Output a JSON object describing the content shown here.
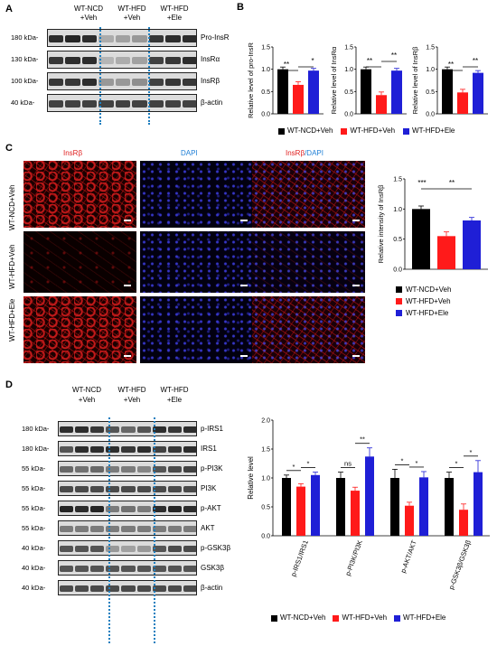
{
  "panels": {
    "A": "A",
    "B": "B",
    "C": "C",
    "D": "D"
  },
  "panelA": {
    "groups": [
      "WT-NCD\n+Veh",
      "WT-HFD\n+Veh",
      "WT-HFD\n+Ele"
    ],
    "group1": "WT-NCD",
    "group1b": "+Veh",
    "group2": "WT-HFD",
    "group2b": "+Veh",
    "group3": "WT-HFD",
    "group3b": "+Ele",
    "rows": [
      {
        "kda": "180 kDa-",
        "protein": "Pro-InsR"
      },
      {
        "kda": "130 kDa-",
        "protein": "InsRα"
      },
      {
        "kda": "100 kDa-",
        "protein": "InsRβ"
      },
      {
        "kda": "40 kDa-",
        "protein": "β-actin"
      }
    ]
  },
  "panelB": {
    "sig1": "**",
    "sig2": "*",
    "sig3": "**",
    "sig4": "**",
    "sig5": "**",
    "sig6": "**",
    "legend": [
      "WT-NCD+Veh",
      "WT-HFD+Veh",
      "WT-HFD+Ele"
    ]
  },
  "panelC": {
    "col1": "InsRβ",
    "col2": "DAPI",
    "col3a": "InsRβ",
    "col3b": "/DAPI",
    "row1": "WT-NCD+Veh",
    "row2": "WT-HFD+Veh",
    "row3": "WT-HFD+Ele",
    "sig1": "***",
    "sig2": "**",
    "legend": [
      "WT-NCD+Veh",
      "WT-HFD+Veh",
      "WT-HFD+Ele"
    ]
  },
  "panelD": {
    "group1": "WT-NCD",
    "group1b": "+Veh",
    "group2": "WT-HFD",
    "group2b": "+Veh",
    "group3": "WT-HFD",
    "group3b": "+Ele",
    "rows": [
      {
        "kda": "180 kDa-",
        "protein": "p-IRS1"
      },
      {
        "kda": "180 kDa-",
        "protein": "IRS1"
      },
      {
        "kda": "55 kDa-",
        "protein": "p-PI3K"
      },
      {
        "kda": "55 kDa-",
        "protein": "PI3K"
      },
      {
        "kda": "55 kDa-",
        "protein": "p-AKT"
      },
      {
        "kda": "55 kDa-",
        "protein": "AKT"
      },
      {
        "kda": "40 kDa-",
        "protein": "p-GSK3β"
      },
      {
        "kda": "40 kDa-",
        "protein": "GSK3β"
      },
      {
        "kda": "40 kDa-",
        "protein": "β-actin"
      }
    ],
    "sigs": [
      "*",
      "*",
      "ns",
      "**",
      "*",
      "*",
      "*",
      "*"
    ],
    "legend": [
      "WT-NCD+Veh",
      "WT-HFD+Veh",
      "WT-HFD+Ele"
    ]
  },
  "colors": {
    "veh_ncd": "#000000",
    "veh_hfd": "#ff1a1a",
    "hfd_ele": "#1f1fd6",
    "dash": "#1f7fbf",
    "confocal_red": "#c41a1a",
    "confocal_blue": "#1a1aa0"
  },
  "chart_data": [
    {
      "type": "bar",
      "ylabel": "Relative level of pro-InsR",
      "ylim": [
        0,
        1.5
      ],
      "yticks": [
        "0.0",
        "0.5",
        "1.0",
        "1.5"
      ],
      "series": [
        {
          "name": "WT-NCD+Veh",
          "values": [
            1.0
          ]
        },
        {
          "name": "WT-HFD+Veh",
          "values": [
            0.65
          ]
        },
        {
          "name": "WT-HFD+Ele",
          "values": [
            0.97
          ]
        }
      ]
    },
    {
      "type": "bar",
      "ylabel": "Relative level of InsRα",
      "ylim": [
        0,
        1.5
      ],
      "yticks": [
        "0.0",
        "0.5",
        "1.0",
        "1.5"
      ],
      "series": [
        {
          "name": "WT-NCD+Veh",
          "values": [
            1.0
          ]
        },
        {
          "name": "WT-HFD+Veh",
          "values": [
            0.42
          ]
        },
        {
          "name": "WT-HFD+Ele",
          "values": [
            0.97
          ]
        }
      ]
    },
    {
      "type": "bar",
      "ylabel": "Relative level of InsRβ",
      "ylim": [
        0,
        1.5
      ],
      "yticks": [
        "0.0",
        "0.5",
        "1.0",
        "1.5"
      ],
      "series": [
        {
          "name": "WT-NCD+Veh",
          "values": [
            1.0
          ]
        },
        {
          "name": "WT-HFD+Veh",
          "values": [
            0.48
          ]
        },
        {
          "name": "WT-HFD+Ele",
          "values": [
            0.92
          ]
        }
      ]
    },
    {
      "type": "bar",
      "ylabel": "Relative intensity of InsRβ",
      "ylim": [
        0,
        1.5
      ],
      "yticks": [
        "0.0",
        "0.5",
        "1.0",
        "1.5"
      ],
      "series": [
        {
          "name": "WT-NCD+Veh",
          "values": [
            1.0
          ]
        },
        {
          "name": "WT-HFD+Veh",
          "values": [
            0.55
          ]
        },
        {
          "name": "WT-HFD+Ele",
          "values": [
            0.81
          ]
        }
      ]
    },
    {
      "type": "bar",
      "ylabel": "Relative level",
      "ylim": [
        0,
        2.0
      ],
      "yticks": [
        "0.0",
        "0.5",
        "1.0",
        "1.5",
        "2.0"
      ],
      "categories": [
        "p-IRS1/IRS1",
        "p-PI3K/PI3K",
        "p-AKT/AKT",
        "p-GSK3β/GSK3β"
      ],
      "series": [
        {
          "name": "WT-NCD+Veh",
          "values": [
            1.0,
            1.0,
            1.0,
            1.0
          ]
        },
        {
          "name": "WT-HFD+Veh",
          "values": [
            0.85,
            0.78,
            0.52,
            0.45
          ]
        },
        {
          "name": "WT-HFD+Ele",
          "values": [
            1.05,
            1.37,
            1.01,
            1.1
          ]
        }
      ]
    }
  ]
}
